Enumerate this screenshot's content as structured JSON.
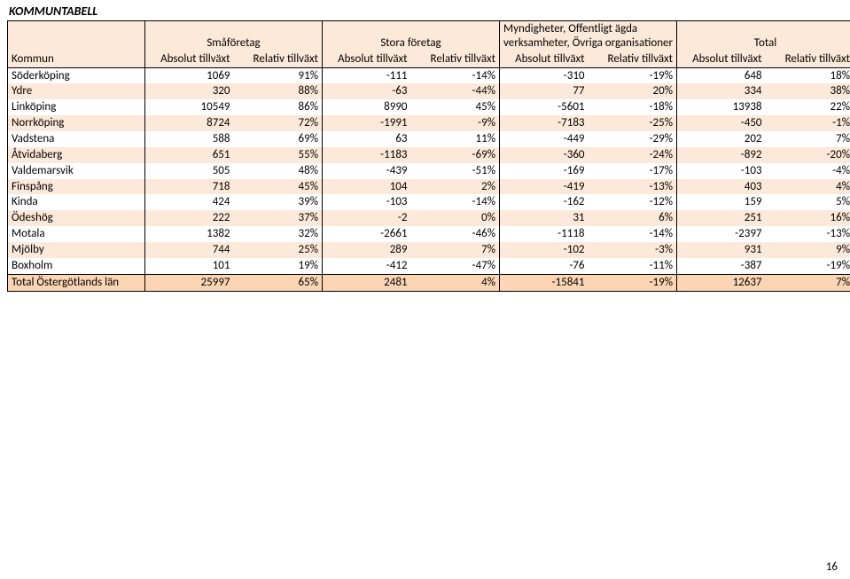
{
  "title": "KOMMUNTABELL",
  "page_number": "16",
  "table": {
    "group_headers": {
      "kommun": "Kommun",
      "sma": "Småföretag",
      "stora": "Stora företag",
      "mynd": "Myndigheter, Offentligt ägda verksamheter, Övriga organisationer",
      "total": "Total"
    },
    "sub_headers": {
      "abs": "Absolut tillväxt",
      "rel": "Relativ tillväxt"
    },
    "rows": [
      {
        "kommun": "Söderköping",
        "v": [
          "1069",
          "91%",
          "-111",
          "-14%",
          "-310",
          "-19%",
          "648",
          "18%"
        ]
      },
      {
        "kommun": "Ydre",
        "v": [
          "320",
          "88%",
          "-63",
          "-44%",
          "77",
          "20%",
          "334",
          "38%"
        ]
      },
      {
        "kommun": "Linköping",
        "v": [
          "10549",
          "86%",
          "8990",
          "45%",
          "-5601",
          "-18%",
          "13938",
          "22%"
        ]
      },
      {
        "kommun": "Norrköping",
        "v": [
          "8724",
          "72%",
          "-1991",
          "-9%",
          "-7183",
          "-25%",
          "-450",
          "-1%"
        ]
      },
      {
        "kommun": "Vadstena",
        "v": [
          "588",
          "69%",
          "63",
          "11%",
          "-449",
          "-29%",
          "202",
          "7%"
        ]
      },
      {
        "kommun": "Åtvidaberg",
        "v": [
          "651",
          "55%",
          "-1183",
          "-69%",
          "-360",
          "-24%",
          "-892",
          "-20%"
        ]
      },
      {
        "kommun": "Valdemarsvik",
        "v": [
          "505",
          "48%",
          "-439",
          "-51%",
          "-169",
          "-17%",
          "-103",
          "-4%"
        ]
      },
      {
        "kommun": "Finspång",
        "v": [
          "718",
          "45%",
          "104",
          "2%",
          "-419",
          "-13%",
          "403",
          "4%"
        ]
      },
      {
        "kommun": "Kinda",
        "v": [
          "424",
          "39%",
          "-103",
          "-14%",
          "-162",
          "-12%",
          "159",
          "5%"
        ]
      },
      {
        "kommun": "Ödeshög",
        "v": [
          "222",
          "37%",
          "-2",
          "0%",
          "31",
          "6%",
          "251",
          "16%"
        ]
      },
      {
        "kommun": "Motala",
        "v": [
          "1382",
          "32%",
          "-2661",
          "-46%",
          "-1118",
          "-14%",
          "-2397",
          "-13%"
        ]
      },
      {
        "kommun": "Mjölby",
        "v": [
          "744",
          "25%",
          "289",
          "7%",
          "-102",
          "-3%",
          "931",
          "9%"
        ]
      },
      {
        "kommun": "Boxholm",
        "v": [
          "101",
          "19%",
          "-412",
          "-47%",
          "-76",
          "-11%",
          "-387",
          "-19%"
        ]
      }
    ],
    "total_row": {
      "kommun": "Total Östergötlands län",
      "v": [
        "25997",
        "65%",
        "2481",
        "4%",
        "-15841",
        "-19%",
        "12637",
        "7%"
      ]
    }
  },
  "style": {
    "stripe_even": "#fde9d9",
    "stripe_odd": "#ffffff",
    "total_bg": "#fcd5b4",
    "border_color": "#000000",
    "font_family": "Calibri",
    "font_size_pt": 10
  }
}
